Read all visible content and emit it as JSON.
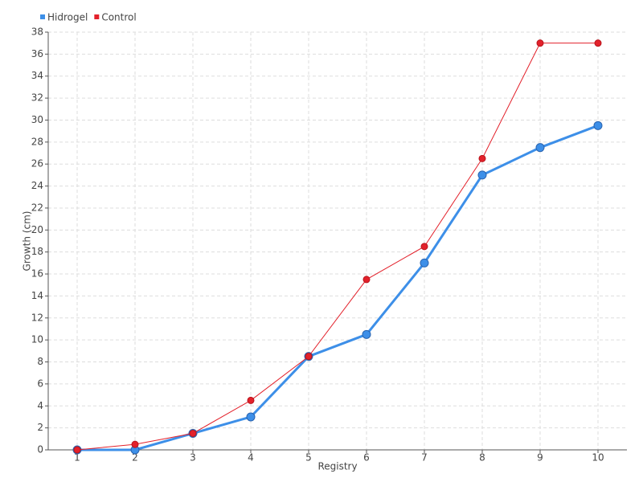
{
  "chart_data": {
    "type": "line",
    "x": [
      1,
      2,
      3,
      4,
      5,
      6,
      7,
      8,
      9,
      10
    ],
    "xlim": [
      0.5,
      10.5
    ],
    "xticks": [
      1,
      2,
      3,
      4,
      5,
      6,
      7,
      8,
      9,
      10
    ],
    "ylim": [
      0,
      38
    ],
    "yticks": [
      0,
      2,
      4,
      6,
      8,
      10,
      12,
      14,
      16,
      18,
      20,
      22,
      24,
      26,
      28,
      30,
      32,
      34,
      36,
      38
    ],
    "x_label": "Registry",
    "y_label": "Growth (cm)",
    "grid": true,
    "legend": "top-left",
    "series": [
      {
        "name": "Hidrogel",
        "color": "#3d8fe8",
        "values": [
          0,
          0,
          1.5,
          3,
          8.5,
          10.5,
          17,
          25,
          27.5,
          29.5
        ]
      },
      {
        "name": "Control",
        "color": "#e3212b",
        "values": [
          0,
          0.5,
          1.5,
          4.5,
          8.5,
          15.5,
          18.5,
          26.5,
          37,
          37
        ]
      }
    ]
  }
}
